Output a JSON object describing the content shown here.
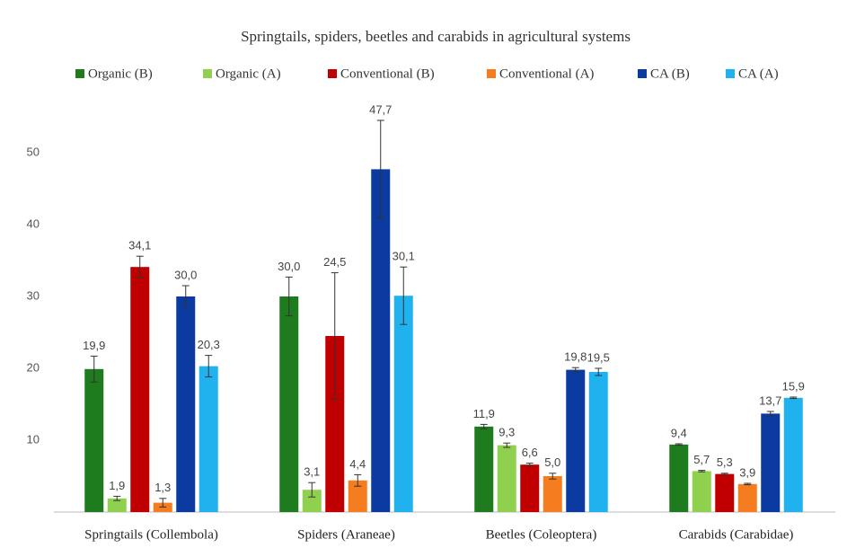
{
  "chart_data": {
    "type": "bar",
    "title": "Springtails, spiders, beetles and carabids in agricultural systems",
    "categories": [
      "Springtails (Collembola)",
      "Spiders (Araneae)",
      "Beetles (Coleoptera)",
      "Carabids (Carabidae)"
    ],
    "series": [
      {
        "name": "Organic (B)",
        "color": "#1e7b1e",
        "values": [
          19.9,
          30.0,
          11.9,
          9.4
        ],
        "value_labels": [
          "19,9",
          "30,0",
          "11,9",
          "9,4"
        ],
        "errors": [
          1.8,
          2.7,
          0.3,
          0.1
        ]
      },
      {
        "name": "Organic (A)",
        "color": "#8fd14f",
        "values": [
          1.9,
          3.1,
          9.3,
          5.7
        ],
        "value_labels": [
          "1,9",
          "3,1",
          "9,3",
          "5,7"
        ],
        "errors": [
          0.3,
          1.0,
          0.3,
          0.1
        ]
      },
      {
        "name": "Conventional (B)",
        "color": "#c00000",
        "values": [
          34.1,
          24.5,
          6.6,
          5.3
        ],
        "value_labels": [
          "34,1",
          "24,5",
          "6,6",
          "5,3"
        ],
        "errors": [
          1.5,
          8.8,
          0.2,
          0.1
        ]
      },
      {
        "name": "Conventional (A)",
        "color": "#f57c1f",
        "values": [
          1.3,
          4.4,
          5.0,
          3.9
        ],
        "value_labels": [
          "1,3",
          "4,4",
          "5,0",
          "3,9"
        ],
        "errors": [
          0.6,
          0.8,
          0.4,
          0.1
        ]
      },
      {
        "name": "CA (B)",
        "color": "#0b3aa0",
        "values": [
          30.0,
          47.7,
          19.8,
          13.7
        ],
        "value_labels": [
          "30,0",
          "47,7",
          "19,8",
          "13,7"
        ],
        "errors": [
          1.5,
          6.8,
          0.3,
          0.3
        ]
      },
      {
        "name": "CA (A)",
        "color": "#1fb2ef",
        "values": [
          20.3,
          30.1,
          19.5,
          15.9
        ],
        "value_labels": [
          "20,3",
          "30,1",
          "19,5",
          "15,9"
        ],
        "errors": [
          1.5,
          4.0,
          0.5,
          0.1
        ]
      }
    ],
    "ylim": [
      0,
      55
    ],
    "yticks": [
      10,
      20,
      30,
      40,
      50
    ],
    "grid": false
  }
}
